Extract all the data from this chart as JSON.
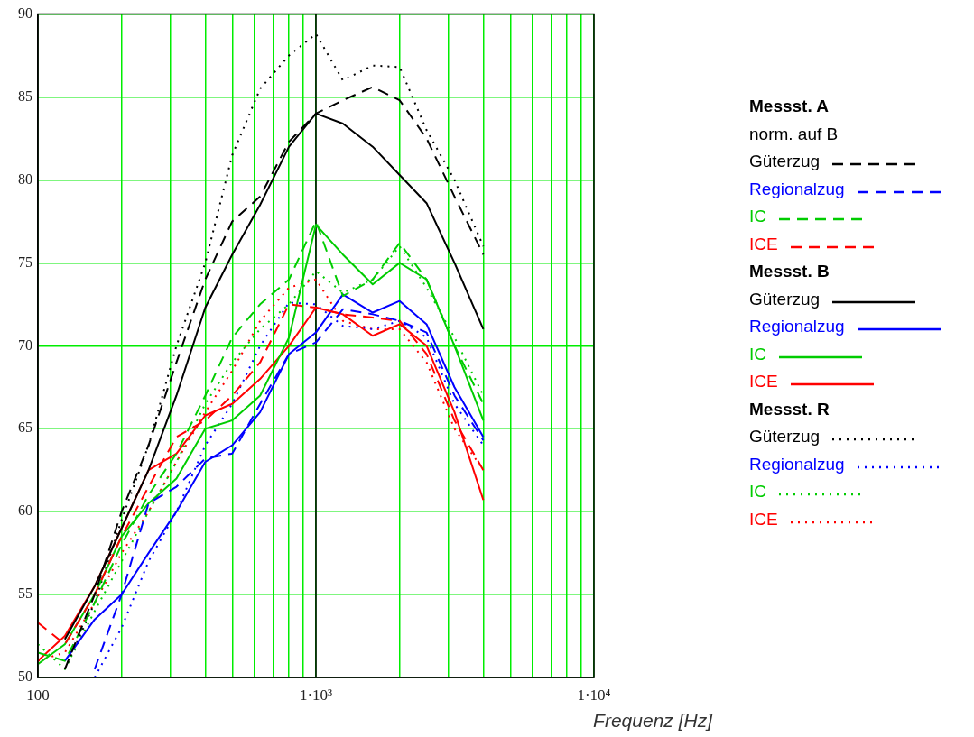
{
  "chart_data": {
    "type": "line",
    "xlabel": "Frequenz [Hz]",
    "x": [
      100,
      125,
      160,
      200,
      250,
      315,
      400,
      500,
      630,
      800,
      1000,
      1250,
      1600,
      2000,
      2500,
      3150,
      4000
    ],
    "xlim": [
      100,
      10000
    ],
    "xticks": [
      {
        "value": 100,
        "label": "100"
      },
      {
        "value": 200,
        "label": null
      },
      {
        "value": 300,
        "label": null
      },
      {
        "value": 400,
        "label": null
      },
      {
        "value": 500,
        "label": null
      },
      {
        "value": 600,
        "label": null
      },
      {
        "value": 700,
        "label": null
      },
      {
        "value": 800,
        "label": null
      },
      {
        "value": 900,
        "label": null
      },
      {
        "value": 1000,
        "label": "1·10³"
      },
      {
        "value": 2000,
        "label": null
      },
      {
        "value": 3000,
        "label": null
      },
      {
        "value": 4000,
        "label": null
      },
      {
        "value": 5000,
        "label": null
      },
      {
        "value": 6000,
        "label": null
      },
      {
        "value": 7000,
        "label": null
      },
      {
        "value": 8000,
        "label": null
      },
      {
        "value": 9000,
        "label": null
      },
      {
        "value": 10000,
        "label": "1·10⁴"
      }
    ],
    "log": "x",
    "ylim": [
      50,
      90
    ],
    "yticks": [
      50,
      55,
      60,
      65,
      70,
      75,
      80,
      85,
      90
    ],
    "grid": true,
    "legend": "right",
    "marker": "none",
    "ref_lines": [
      {
        "axis": "x",
        "value": 1000,
        "color": "#000000"
      }
    ],
    "annotations": [
      "Messst. A\nnorm. auf B",
      "Messst. B",
      "Messst. R"
    ],
    "series": [
      {
        "name": "Güterzug",
        "color": "#000000",
        "line_style": "dashed",
        "values": [
          null,
          50.5,
          55,
          60,
          64,
          69,
          74,
          77.5,
          79,
          82.3,
          84,
          84.8,
          85.6,
          84.8,
          82.5,
          79,
          75.5
        ]
      },
      {
        "name": "Regionalzug",
        "color": "#0000ff",
        "line_style": "dashed",
        "values": [
          null,
          null,
          50.5,
          55,
          60.5,
          61.5,
          63.2,
          63.5,
          66.5,
          69.5,
          70.2,
          72.2,
          71.9,
          71.5,
          70.8,
          67,
          64.3
        ]
      },
      {
        "name": "IC",
        "color": "#00cc00",
        "line_style": "dashed",
        "values": [
          51.5,
          51,
          54.5,
          58,
          61,
          63.5,
          67,
          70.5,
          72.5,
          74,
          77.5,
          73,
          74,
          76.2,
          74,
          70,
          66.5
        ]
      },
      {
        "name": "ICE",
        "color": "#ff0000",
        "line_style": "dashed",
        "values": [
          53.3,
          52,
          55,
          58.5,
          61.5,
          64.5,
          65.5,
          67,
          69,
          72.5,
          72.3,
          71.9,
          71.7,
          71.5,
          69.5,
          65.5,
          62.5
        ]
      },
      {
        "name": "Güterzug",
        "color": "#000000",
        "line_style": "solid",
        "values": [
          null,
          52.3,
          55.5,
          59,
          62.5,
          67,
          72.3,
          75.5,
          78.5,
          82,
          84,
          83.4,
          82,
          80.3,
          78.6,
          75,
          71
        ]
      },
      {
        "name": "Regionalzug",
        "color": "#0000ff",
        "line_style": "solid",
        "values": [
          null,
          51,
          53.5,
          55,
          57.5,
          60,
          63,
          64,
          66,
          69.5,
          70.8,
          73.1,
          72,
          72.7,
          71.3,
          67.5,
          64.5
        ]
      },
      {
        "name": "IC",
        "color": "#00cc00",
        "line_style": "solid",
        "values": [
          50.8,
          52,
          55,
          58.5,
          60.5,
          62,
          65,
          65.5,
          67,
          70.5,
          77.3,
          75.5,
          73.7,
          75,
          74,
          70,
          65.5
        ]
      },
      {
        "name": "ICE",
        "color": "#ff0000",
        "line_style": "solid",
        "values": [
          51,
          52.5,
          55.5,
          59,
          62.5,
          63.5,
          65.8,
          66.5,
          68,
          70,
          72.3,
          71.9,
          70.6,
          71.3,
          70,
          66,
          60.7
        ]
      },
      {
        "name": "Güterzug",
        "color": "#000000",
        "line_style": "dotted",
        "values": [
          null,
          50.5,
          54.5,
          59.5,
          64,
          70,
          75,
          81.5,
          85.5,
          87.5,
          88.8,
          86,
          86.9,
          86.8,
          83,
          80,
          76
        ]
      },
      {
        "name": "Regionalzug",
        "color": "#0000ff",
        "line_style": "dotted",
        "values": [
          null,
          null,
          50,
          53,
          57,
          60,
          64,
          66.5,
          70,
          72.6,
          72.5,
          71.2,
          71,
          71.5,
          70.5,
          66.5,
          64
        ]
      },
      {
        "name": "IC",
        "color": "#00cc00",
        "line_style": "dotted",
        "values": [
          52,
          50.5,
          54,
          57,
          60,
          63,
          66.5,
          69,
          71,
          72.5,
          74.5,
          73.2,
          74,
          76,
          73.5,
          70.5,
          67
        ]
      },
      {
        "name": "ICE",
        "color": "#ff0000",
        "line_style": "dotted",
        "values": [
          51,
          51.5,
          54.5,
          57.5,
          60,
          63,
          66,
          68.5,
          71.5,
          73.5,
          74,
          71.5,
          71,
          71,
          69,
          65,
          62.5
        ]
      }
    ]
  }
}
